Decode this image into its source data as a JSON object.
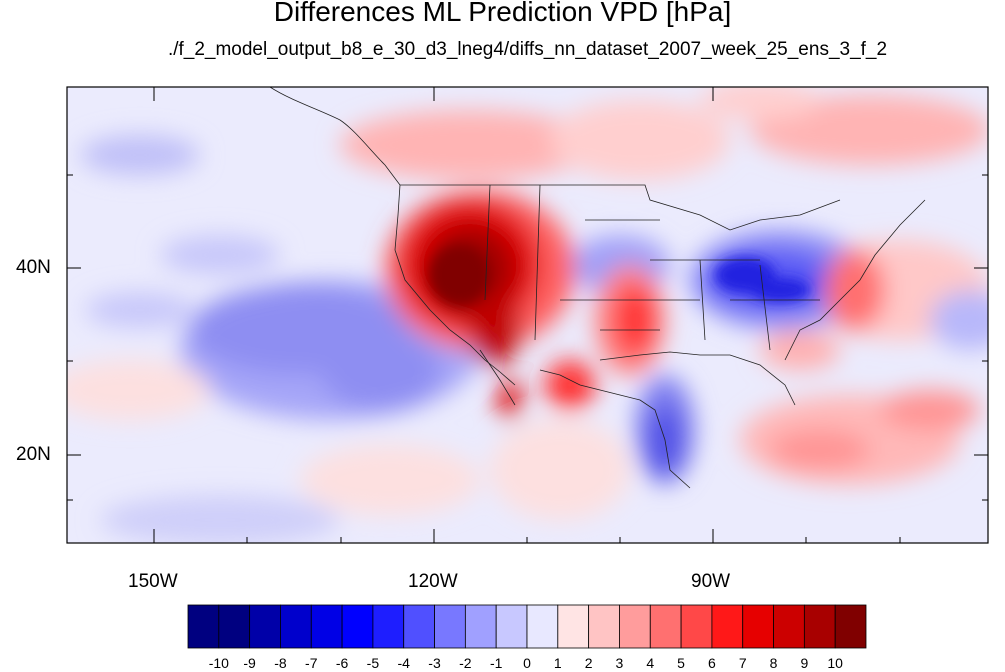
{
  "title": "Differences ML Prediction VPD [hPa]",
  "subtitle": "./f_2_model_output_b8_e_30_d3_lneg4/diffs_nn_dataset_2007_week_25_ens_3_f_2",
  "lat_labels": [
    "40N",
    "20N"
  ],
  "lon_labels": [
    "150W",
    "120W",
    "90W"
  ],
  "colorbar": {
    "tick_labels": [
      "-10",
      "-9",
      "-8",
      "-7",
      "-6",
      "-5",
      "-4",
      "-3",
      "-2",
      "-1",
      "0",
      "1",
      "2",
      "3",
      "4",
      "5",
      "6",
      "7",
      "8",
      "9",
      "10"
    ],
    "colors": [
      "#000080",
      "#0000a8",
      "#0000cc",
      "#0000e6",
      "#0000ff",
      "#1e1eff",
      "#5050ff",
      "#7878ff",
      "#a0a0ff",
      "#c8c8ff",
      "#e8e8ff",
      "#ffe4e4",
      "#ffc4c4",
      "#ff9c9c",
      "#ff7070",
      "#ff4848",
      "#ff1818",
      "#e60000",
      "#cc0000",
      "#a80000",
      "#800000"
    ]
  }
}
